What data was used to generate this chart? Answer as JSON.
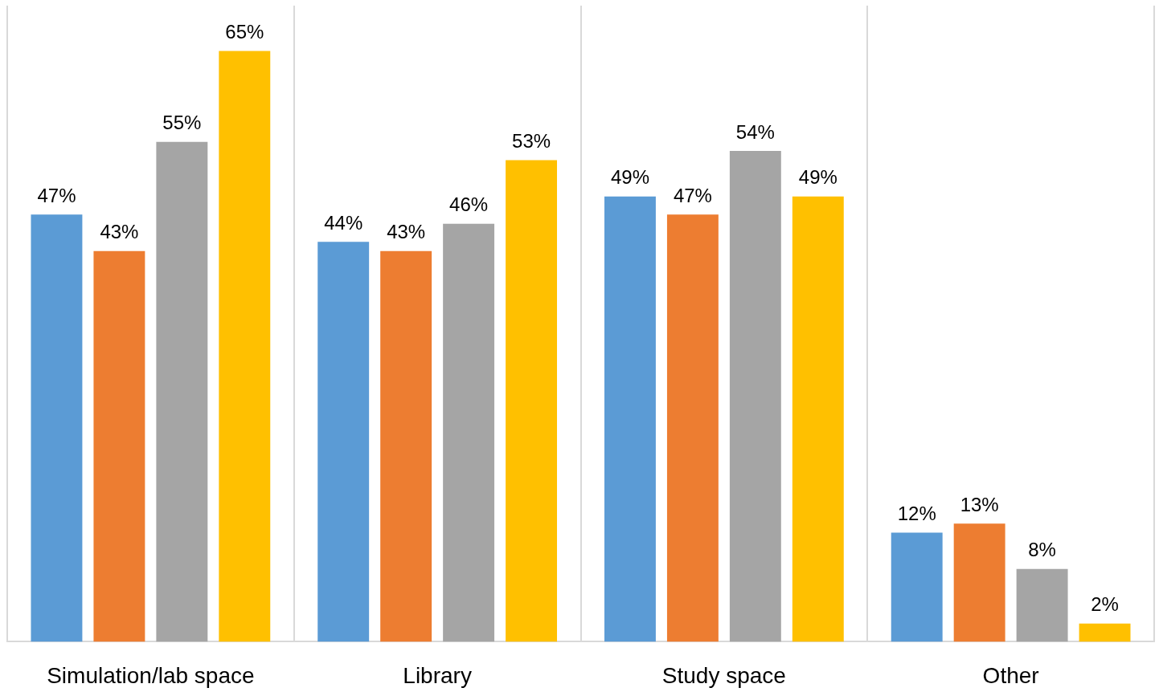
{
  "chart_data": {
    "type": "bar",
    "categories": [
      "Simulation/lab space",
      "Library",
      "Study space",
      "Other"
    ],
    "series": [
      {
        "color": "#5b9bd5",
        "values": [
          47,
          44,
          49,
          12
        ],
        "value_labels": [
          "47%",
          "44%",
          "49%",
          "12%"
        ]
      },
      {
        "color": "#ed7d31",
        "values": [
          43,
          43,
          47,
          13
        ],
        "value_labels": [
          "43%",
          "43%",
          "47%",
          "13%"
        ]
      },
      {
        "color": "#a5a5a5",
        "values": [
          55,
          46,
          54,
          8
        ],
        "value_labels": [
          "55%",
          "46%",
          "54%",
          "8%"
        ]
      },
      {
        "color": "#ffc000",
        "values": [
          65,
          53,
          49,
          2
        ],
        "value_labels": [
          "65%",
          "53%",
          "49%",
          "2%"
        ]
      }
    ],
    "grid": "x",
    "legend": false,
    "tick_labels": "x"
  }
}
